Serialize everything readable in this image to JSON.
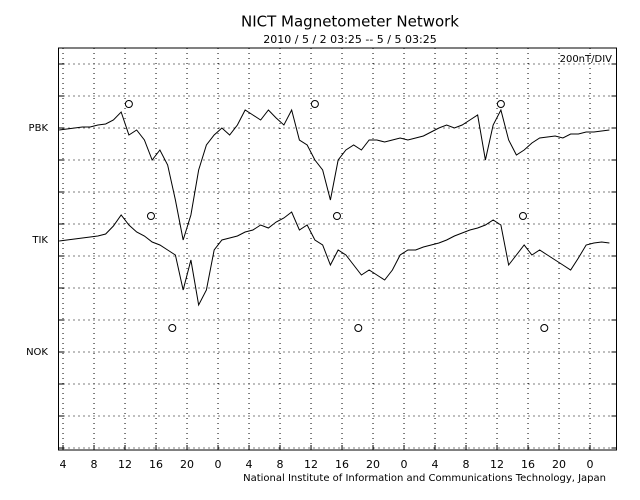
{
  "chart_data": {
    "type": "line",
    "title": "NICT Magnetometer Network",
    "subtitle": "2010 / 5 / 2  03:25 -- 5 / 5  03:25",
    "scale_label": "200nT/DIV",
    "footer": "National Institute of Information and Communications Technology, Japan",
    "xlim": [
      3.4167,
      75.4167
    ],
    "xticks": [
      4,
      8,
      12,
      16,
      20,
      {
        "value": 24,
        "label": "0"
      },
      {
        "value": 28,
        "label": "4"
      },
      {
        "value": 32,
        "label": "8"
      },
      {
        "value": 36,
        "label": "12"
      },
      {
        "value": 40,
        "label": "16"
      },
      {
        "value": 44,
        "label": "20"
      },
      {
        "value": 48,
        "label": "0"
      },
      {
        "value": 52,
        "label": "4"
      },
      {
        "value": 56,
        "label": "8"
      },
      {
        "value": 60,
        "label": "12"
      },
      {
        "value": 64,
        "label": "16"
      },
      {
        "value": 68,
        "label": "20"
      },
      {
        "value": 72,
        "label": "0"
      }
    ],
    "ylim": [
      -12.5,
      2500
    ],
    "yticks": [
      {
        "value": 2000,
        "label": "PBK"
      },
      {
        "value": 1300,
        "label": "TIK"
      },
      {
        "value": 600,
        "label": "NOK"
      }
    ],
    "ygrid": [
      0,
      200,
      400,
      600,
      800,
      1000,
      1200,
      1400,
      1600,
      1800,
      2000,
      2200,
      2400
    ],
    "grid": true,
    "x": [
      3.5,
      4.5,
      5.5,
      6.5,
      7.5,
      8.5,
      9.5,
      10.5,
      11.5,
      12.5,
      13.5,
      14.5,
      15.5,
      16.5,
      17.5,
      18.5,
      19.5,
      20.5,
      21.5,
      22.5,
      23.5,
      24.5,
      25.5,
      26.5,
      27.5,
      28.5,
      29.5,
      30.5,
      31.5,
      32.5,
      33.5,
      34.5,
      35.5,
      36.5,
      37.5,
      38.5,
      39.5,
      40.5,
      41.5,
      42.5,
      43.5,
      44.5,
      45.5,
      46.5,
      47.5,
      48.5,
      49.5,
      50.5,
      51.5,
      52.5,
      53.5,
      54.5,
      55.5,
      56.5,
      57.5,
      58.5,
      59.5,
      60.5,
      61.5,
      62.5,
      63.5,
      64.5,
      65.5,
      66.5,
      67.5,
      68.5,
      69.5,
      70.5,
      71.5,
      72.5,
      73.5,
      74.5
    ],
    "series": [
      {
        "name": "PBK",
        "color": "#000000",
        "values": [
          1987.5,
          1993.75,
          2000,
          2006.25,
          2006.25,
          2018.75,
          2025,
          2050,
          2100,
          1956.25,
          1987.5,
          1925,
          1800,
          1862.5,
          1768.75,
          1550,
          1300,
          1456.25,
          1737.5,
          1893.75,
          1956.25,
          2000,
          1956.25,
          2018.75,
          2112.5,
          2081.25,
          2050,
          2112.5,
          2062.5,
          2018.75,
          2112.5,
          1925,
          1893.75,
          1800,
          1737.5,
          1550,
          1800,
          1862.5,
          1893.75,
          1862.5,
          1925,
          1925,
          1912.5,
          1925,
          1937.5,
          1925,
          1937.5,
          1950,
          1975,
          2000,
          2018.75,
          2000,
          2018.75,
          2050,
          2081.25,
          1800,
          2018.75,
          2112.5,
          1925,
          1831.25,
          1862.5,
          1906.25,
          1937.5,
          1943.75,
          1950,
          1937.5,
          1962.5,
          1962.5,
          1975,
          1975,
          1981.25,
          1987.5
        ]
      },
      {
        "name": "TIK",
        "color": "#000000",
        "values": [
          1293.75,
          1300,
          1306.25,
          1312.5,
          1318.75,
          1325,
          1337.5,
          1387.5,
          1456.25,
          1393.75,
          1350,
          1325,
          1287.5,
          1268.75,
          1237.5,
          1206.25,
          987.5,
          1175,
          893.75,
          987.5,
          1237.5,
          1300,
          1312.5,
          1325,
          1350,
          1362.5,
          1393.75,
          1375,
          1412.5,
          1437.5,
          1475,
          1362.5,
          1393.75,
          1300,
          1268.75,
          1143.75,
          1237.5,
          1206.25,
          1143.75,
          1081.25,
          1112.5,
          1081.25,
          1050,
          1112.5,
          1206.25,
          1237.5,
          1237.5,
          1256.25,
          1268.75,
          1281.25,
          1300,
          1325,
          1343.75,
          1362.5,
          1375,
          1393.75,
          1425,
          1393.75,
          1143.75,
          1206.25,
          1268.75,
          1206.25,
          1237.5,
          1206.25,
          1175,
          1143.75,
          1112.5,
          1187.5,
          1268.75,
          1281.25,
          1287.5,
          1281.25
        ]
      }
    ],
    "markers": [
      {
        "x": [
          12.5,
          36.5,
          60.5
        ],
        "y": [
          2150,
          2150,
          2150
        ]
      },
      {
        "x": [
          15.35,
          39.35,
          63.35
        ],
        "y": [
          1450,
          1450,
          1450
        ]
      },
      {
        "x": [
          18.1,
          42.1,
          66.1
        ],
        "y": [
          750,
          750,
          750
        ]
      }
    ]
  }
}
